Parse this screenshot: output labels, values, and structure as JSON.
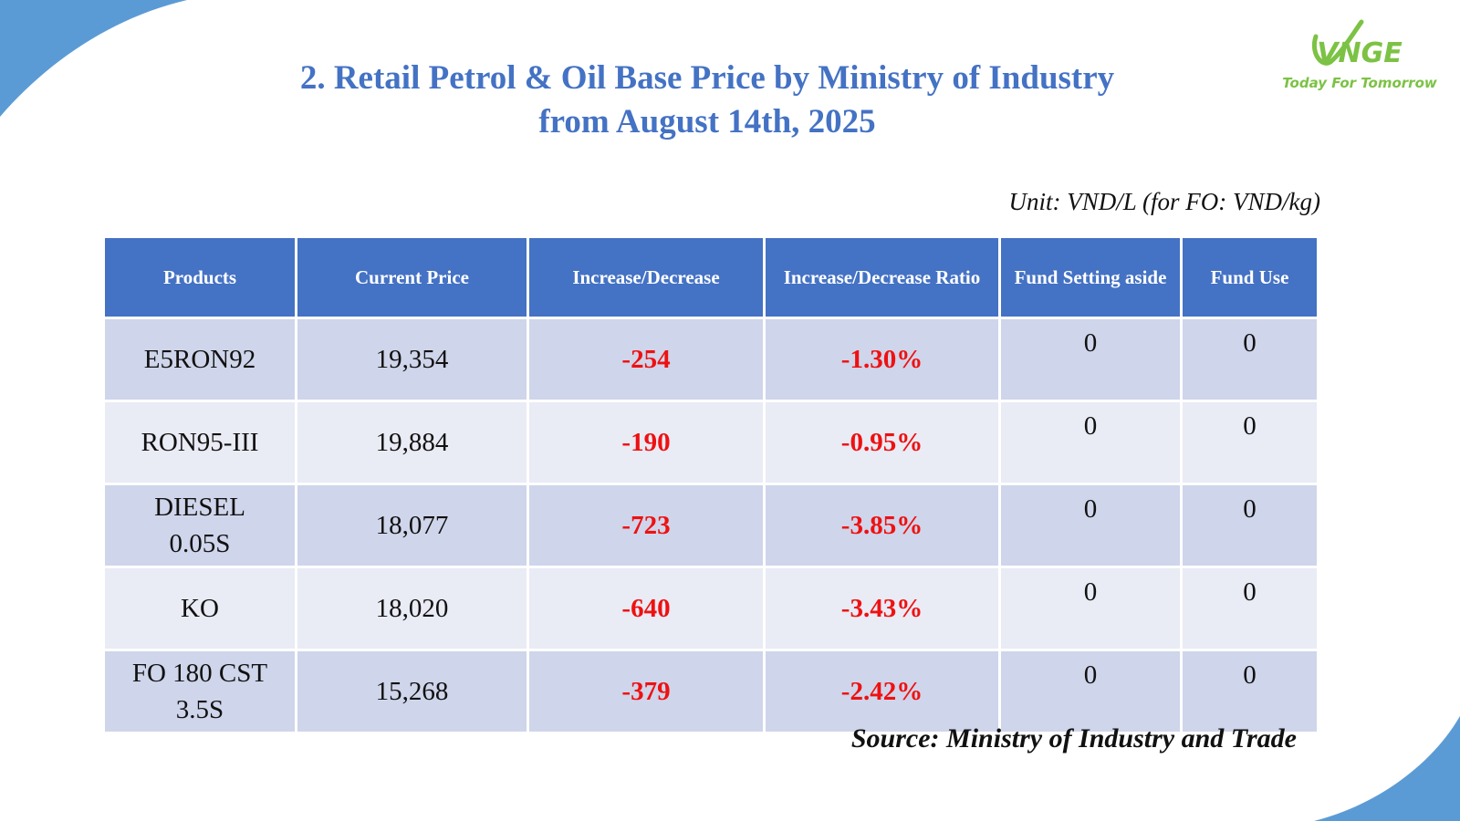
{
  "title": {
    "line1": "2. Retail Petrol & Oil Base Price by Ministry of Industry",
    "line2": "from August 14th, 2025"
  },
  "logo": {
    "text": "VNGE",
    "tagline": "Today For Tomorrow",
    "color": "#7CC244"
  },
  "unit_note": "Unit: VND/L (for FO: VND/kg)",
  "table": {
    "headers": [
      "Products",
      "Current Price",
      "Increase/Decrease",
      "Increase/Decrease Ratio",
      "Fund Setting aside",
      "Fund Use"
    ],
    "rows": [
      {
        "product": "E5RON92",
        "price": "19,354",
        "change": "-254",
        "ratio": "-1.30%",
        "fund_setting": "0",
        "fund_use": "0"
      },
      {
        "product": "RON95-III",
        "price": "19,884",
        "change": "-190",
        "ratio": "-0.95%",
        "fund_setting": "0",
        "fund_use": "0"
      },
      {
        "product": "DIESEL 0.05S",
        "price": "18,077",
        "change": "-723",
        "ratio": "-3.85%",
        "fund_setting": "0",
        "fund_use": "0"
      },
      {
        "product": "KO",
        "price": "18,020",
        "change": "-640",
        "ratio": "-3.43%",
        "fund_setting": "0",
        "fund_use": "0"
      },
      {
        "product": "FO 180 CST 3.5S",
        "price": "15,268",
        "change": "-379",
        "ratio": "-2.42%",
        "fund_setting": "0",
        "fund_use": "0"
      }
    ]
  },
  "source": "Source: Ministry of Industry and Trade",
  "colors": {
    "header_bg": "#4472C4",
    "row_odd": "#CFD5EA",
    "row_even": "#E9EBF5",
    "negative": "#ee1111",
    "accent": "#5B9BD5"
  }
}
